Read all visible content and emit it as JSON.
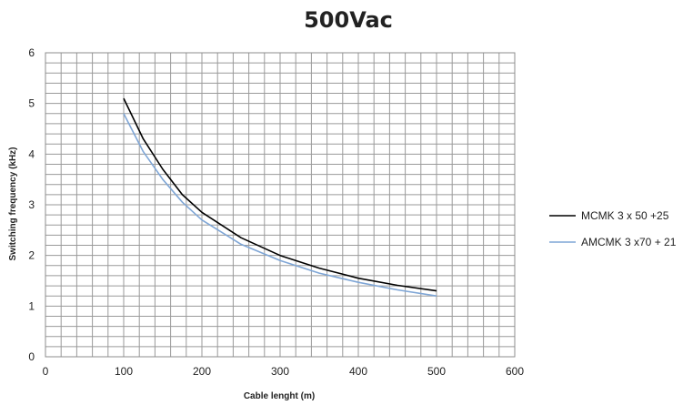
{
  "chart_data": {
    "type": "line",
    "title": "500Vac",
    "xlabel": "Cable lenght (m)",
    "ylabel": "Switching frequency (kHz)",
    "xlim": [
      0,
      600
    ],
    "ylim": [
      0,
      6
    ],
    "xticks": [
      "0",
      "100",
      "200",
      "300",
      "400",
      "500",
      "600"
    ],
    "yticks": [
      "0",
      "1",
      "2",
      "3",
      "4",
      "5",
      "6"
    ],
    "grid": true,
    "legend_position": "right",
    "series": [
      {
        "name": "MCMK 3 x 50 +25",
        "color": "#000000",
        "x": [
          100,
          125,
          150,
          175,
          200,
          250,
          300,
          350,
          400,
          450,
          500
        ],
        "y": [
          5.1,
          4.3,
          3.7,
          3.2,
          2.85,
          2.35,
          2.0,
          1.75,
          1.55,
          1.41,
          1.3
        ]
      },
      {
        "name": "AMCMK 3 x70 + 21",
        "color": "#7fa6d6",
        "x": [
          100,
          125,
          150,
          175,
          200,
          250,
          300,
          350,
          400,
          450,
          500
        ],
        "y": [
          4.8,
          4.05,
          3.5,
          3.05,
          2.7,
          2.22,
          1.9,
          1.65,
          1.47,
          1.32,
          1.2
        ]
      }
    ]
  }
}
